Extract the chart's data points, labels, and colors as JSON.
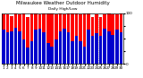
{
  "title": "Milwaukee Weather Outdoor Humidity",
  "subtitle": "Daily High/Low",
  "high_color": "#ff0000",
  "low_color": "#0000cc",
  "background_color": "#ffffff",
  "grid_color": "#cccccc",
  "ylim": [
    0,
    100
  ],
  "high_values": [
    97,
    97,
    95,
    100,
    97,
    100,
    93,
    100,
    100,
    97,
    100,
    100,
    100,
    97,
    100,
    97,
    100,
    100,
    100,
    97,
    100,
    100,
    93,
    97,
    93,
    97,
    100,
    97,
    97,
    100
  ],
  "low_values": [
    68,
    62,
    65,
    71,
    65,
    48,
    33,
    45,
    68,
    70,
    62,
    42,
    35,
    48,
    65,
    70,
    62,
    45,
    55,
    45,
    35,
    68,
    55,
    60,
    55,
    70,
    65,
    58,
    68,
    62
  ],
  "x_labels": [
    "1",
    "2",
    "3",
    "4",
    "5",
    "6",
    "7",
    "8",
    "9",
    "10",
    "11",
    "12",
    "13",
    "14",
    "15",
    "16",
    "17",
    "18",
    "19",
    "20",
    "21",
    "22",
    "23",
    "24",
    "25",
    "26",
    "27",
    "28",
    "29",
    "30"
  ],
  "dotted_vline_x": 24,
  "title_fontsize": 4.0,
  "subtitle_fontsize": 3.2,
  "tick_fontsize": 3.0,
  "ytick_labels": [
    "0",
    "",
    "",
    "",
    "100"
  ]
}
